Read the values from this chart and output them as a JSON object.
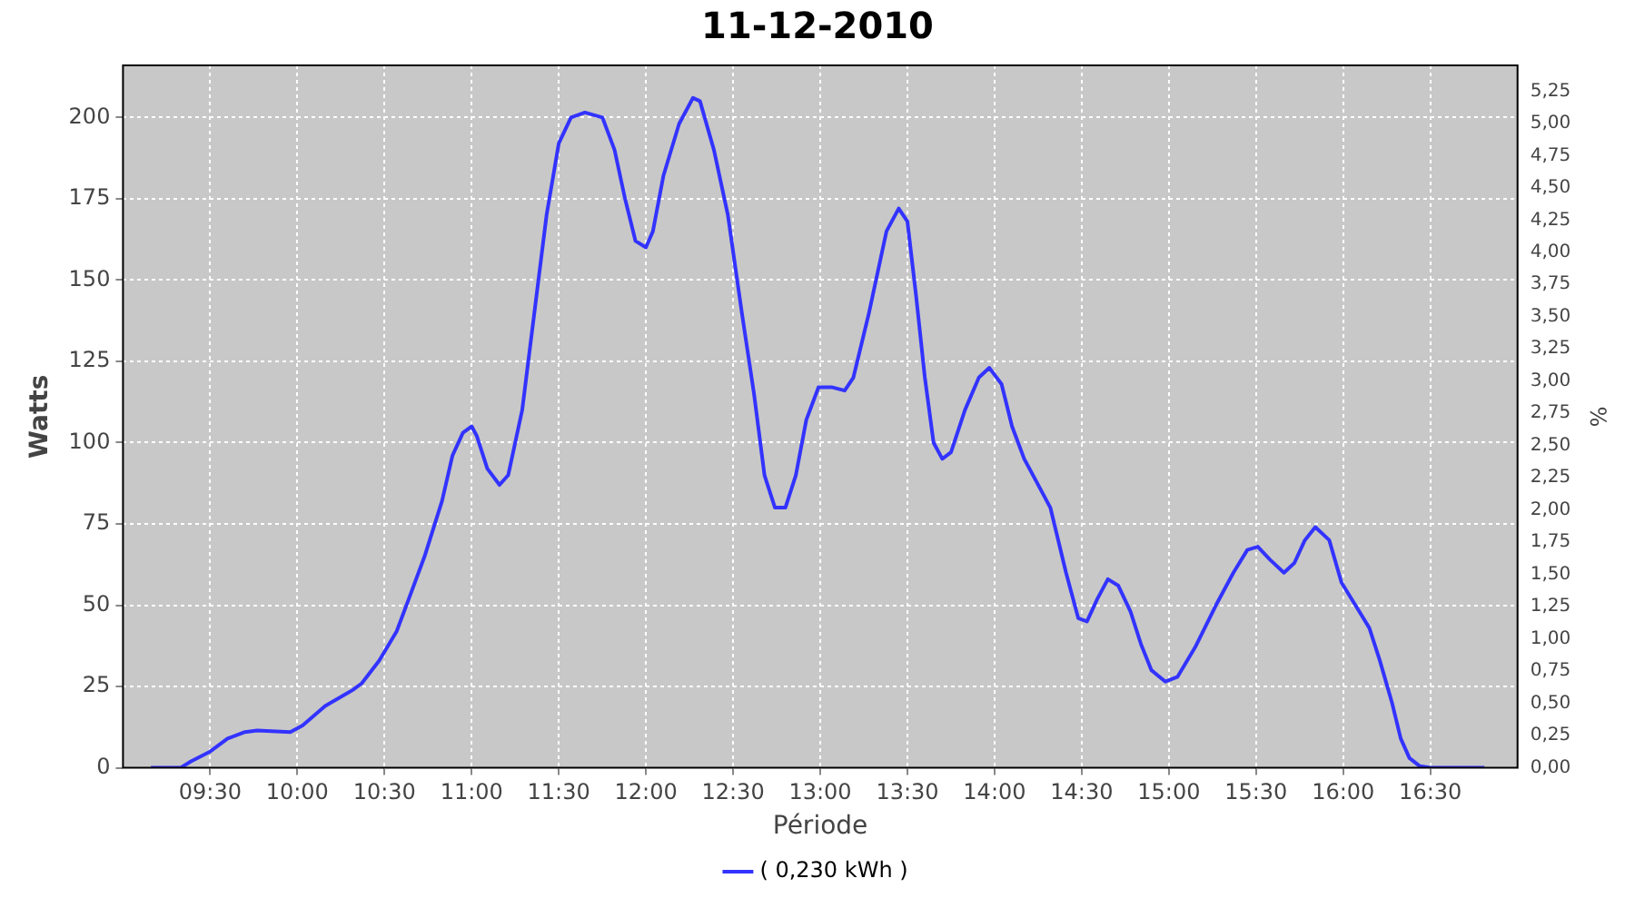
{
  "chart_data": {
    "type": "line",
    "title": "11-12-2010",
    "xlabel": "Période",
    "ylabel": "Watts",
    "y2label": "%",
    "xlim": [
      9,
      17
    ],
    "xticks": [
      {
        "value": 9.5,
        "label": "09:30"
      },
      {
        "value": 10,
        "label": "10:00"
      },
      {
        "value": 10.5,
        "label": "10:30"
      },
      {
        "value": 11,
        "label": "11:00"
      },
      {
        "value": 11.5,
        "label": "11:30"
      },
      {
        "value": 12,
        "label": "12:00"
      },
      {
        "value": 12.5,
        "label": "12:30"
      },
      {
        "value": 13,
        "label": "13:00"
      },
      {
        "value": 13.5,
        "label": "13:30"
      },
      {
        "value": 14,
        "label": "14:00"
      },
      {
        "value": 14.5,
        "label": "14:30"
      },
      {
        "value": 15,
        "label": "15:00"
      },
      {
        "value": 15.5,
        "label": "15:30"
      },
      {
        "value": 16,
        "label": "16:00"
      },
      {
        "value": 16.5,
        "label": "16:30"
      }
    ],
    "ylim": [
      0,
      216
    ],
    "yticks": [
      0,
      25,
      50,
      75,
      100,
      125,
      150,
      175,
      200
    ],
    "y2lim": [
      0,
      5.45
    ],
    "y2ticks": [
      {
        "value": 0,
        "label": "0,00"
      },
      {
        "value": 0.25,
        "label": "0,25"
      },
      {
        "value": 0.5,
        "label": "0,50"
      },
      {
        "value": 0.75,
        "label": "0,75"
      },
      {
        "value": 1,
        "label": "1,00"
      },
      {
        "value": 1.25,
        "label": "1,25"
      },
      {
        "value": 1.5,
        "label": "1,50"
      },
      {
        "value": 1.75,
        "label": "1,75"
      },
      {
        "value": 2,
        "label": "2,00"
      },
      {
        "value": 2.25,
        "label": "2,25"
      },
      {
        "value": 2.5,
        "label": "2,50"
      },
      {
        "value": 2.75,
        "label": "2,75"
      },
      {
        "value": 3,
        "label": "3,00"
      },
      {
        "value": 3.25,
        "label": "3,25"
      },
      {
        "value": 3.5,
        "label": "3,50"
      },
      {
        "value": 3.75,
        "label": "3,75"
      },
      {
        "value": 4,
        "label": "4,00"
      },
      {
        "value": 4.25,
        "label": "4,25"
      },
      {
        "value": 4.5,
        "label": "4,50"
      },
      {
        "value": 4.75,
        "label": "4,75"
      },
      {
        "value": 5,
        "label": "5,00"
      },
      {
        "value": 5.25,
        "label": "5,25"
      }
    ],
    "grid": true,
    "legend": "bottom",
    "marker": "none",
    "line_style": "solid",
    "x": [
      9.16,
      9.33,
      9.39,
      9.5,
      9.6,
      9.7,
      9.77,
      9.96,
      10.03,
      10.16,
      10.32,
      10.37,
      10.47,
      10.57,
      10.64,
      10.73,
      10.83,
      10.89,
      10.95,
      11.0,
      11.03,
      11.09,
      11.16,
      11.21,
      11.29,
      11.36,
      11.43,
      11.5,
      11.57,
      11.65,
      11.75,
      11.82,
      11.88,
      11.94,
      12.0,
      12.04,
      12.1,
      12.19,
      12.27,
      12.31,
      12.39,
      12.47,
      12.55,
      12.62,
      12.68,
      12.74,
      12.8,
      12.86,
      12.92,
      12.99,
      13.07,
      13.14,
      13.19,
      13.28,
      13.38,
      13.45,
      13.5,
      13.55,
      13.6,
      13.65,
      13.7,
      13.75,
      13.83,
      13.91,
      13.97,
      14.04,
      14.1,
      14.17,
      14.24,
      14.32,
      14.41,
      14.48,
      14.53,
      14.59,
      14.65,
      14.71,
      14.78,
      14.84,
      14.9,
      14.98,
      15.05,
      15.15,
      15.27,
      15.37,
      15.45,
      15.51,
      15.58,
      15.66,
      15.72,
      15.78,
      15.84,
      15.92,
      15.99,
      16.07,
      16.15,
      16.21,
      16.28,
      16.33,
      16.38,
      16.44,
      16.5,
      16.81
    ],
    "series": [
      {
        "name": "( 0,230 kWh )",
        "color": "#3333ff",
        "values": [
          0,
          0,
          2,
          5,
          9,
          11,
          11.5,
          11,
          13,
          19,
          24,
          26,
          33,
          42,
          52,
          65,
          82,
          96,
          103,
          105,
          102,
          92,
          87,
          90,
          110,
          140,
          170,
          192,
          200,
          201.5,
          200,
          190,
          175,
          162,
          160,
          165,
          182,
          198,
          206,
          205,
          190,
          170,
          140,
          115,
          90,
          80,
          80,
          90,
          107,
          117,
          117,
          116,
          120,
          140,
          165,
          172,
          168,
          145,
          120,
          100,
          95,
          97,
          110,
          120,
          123,
          118,
          105,
          95,
          88,
          80,
          60,
          46,
          45,
          52,
          58,
          56,
          48,
          38,
          30,
          26.5,
          28,
          37,
          50,
          60,
          67,
          68,
          64,
          60,
          63,
          70,
          74,
          70,
          57,
          50,
          43,
          33,
          20,
          9,
          3,
          0.5,
          0,
          0
        ]
      }
    ]
  }
}
